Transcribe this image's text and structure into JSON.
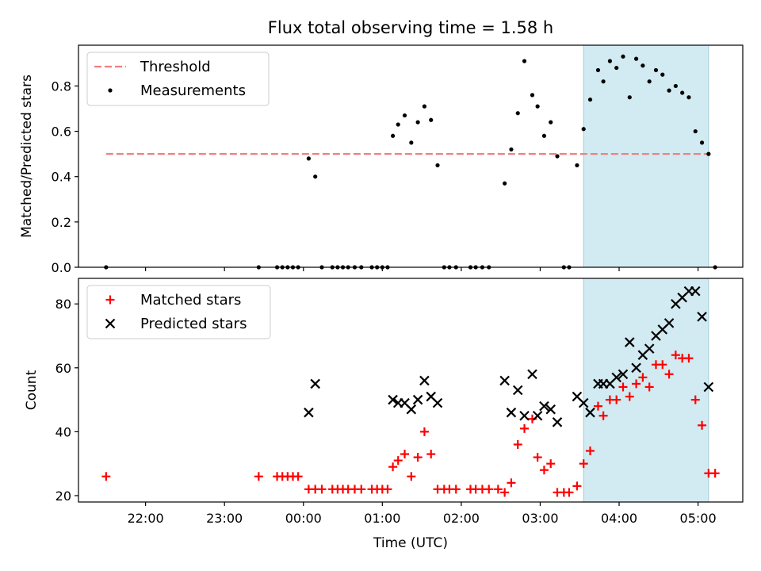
{
  "chart_data": [
    {
      "type": "scatter",
      "title": "Flux total observing time = 1.58 h",
      "ylabel": "Matched/Predicted stars",
      "xlabel": "",
      "x_tick_labels": [
        "22:00",
        "23:00",
        "00:00",
        "01:00",
        "02:00",
        "03:00",
        "04:00",
        "05:00"
      ],
      "ylim": [
        0,
        0.98
      ],
      "y_ticks": [
        0.0,
        0.2,
        0.4,
        0.6,
        0.8
      ],
      "y_tick_labels": [
        "0.0",
        "0.2",
        "0.4",
        "0.6",
        "0.8"
      ],
      "shaded_region": {
        "start": "03:33",
        "end": "05:08",
        "color": "#add8e6"
      },
      "legend": {
        "placement": "upper-left",
        "entries": [
          "Threshold",
          "Measurements"
        ]
      },
      "threshold": {
        "name": "Threshold",
        "value": 0.5,
        "from": "21:30",
        "to": "05:08",
        "color": "#f08080",
        "style": "dashed"
      },
      "series": [
        {
          "name": "Measurements",
          "marker": "dot",
          "color": "#000000",
          "points": [
            [
              "21:30",
              0
            ],
            [
              "23:26",
              0
            ],
            [
              "23:40",
              0
            ],
            [
              "23:44",
              0
            ],
            [
              "23:48",
              0
            ],
            [
              "23:52",
              0
            ],
            [
              "23:56",
              0
            ],
            [
              "00:04",
              0.48
            ],
            [
              "00:09",
              0.4
            ],
            [
              "00:14",
              0
            ],
            [
              "00:22",
              0
            ],
            [
              "00:26",
              0
            ],
            [
              "00:30",
              0
            ],
            [
              "00:34",
              0
            ],
            [
              "00:39",
              0
            ],
            [
              "00:44",
              0
            ],
            [
              "00:52",
              0
            ],
            [
              "00:56",
              0
            ],
            [
              "01:00",
              0
            ],
            [
              "01:04",
              0
            ],
            [
              "01:08",
              0.58
            ],
            [
              "01:12",
              0.63
            ],
            [
              "01:17",
              0.67
            ],
            [
              "01:22",
              0.55
            ],
            [
              "01:27",
              0.64
            ],
            [
              "01:32",
              0.71
            ],
            [
              "01:37",
              0.65
            ],
            [
              "01:42",
              0.45
            ],
            [
              "01:47",
              0
            ],
            [
              "01:51",
              0
            ],
            [
              "01:56",
              0
            ],
            [
              "02:07",
              0
            ],
            [
              "02:11",
              0
            ],
            [
              "02:16",
              0
            ],
            [
              "02:21",
              0
            ],
            [
              "02:33",
              0.37
            ],
            [
              "02:38",
              0.52
            ],
            [
              "02:43",
              0.68
            ],
            [
              "02:48",
              0.91
            ],
            [
              "02:54",
              0.76
            ],
            [
              "02:58",
              0.71
            ],
            [
              "03:03",
              0.58
            ],
            [
              "03:08",
              0.64
            ],
            [
              "03:13",
              0.49
            ],
            [
              "03:18",
              0
            ],
            [
              "03:22",
              0
            ],
            [
              "03:28",
              0.45
            ],
            [
              "03:33",
              0.61
            ],
            [
              "03:38",
              0.74
            ],
            [
              "03:44",
              0.87
            ],
            [
              "03:48",
              0.82
            ],
            [
              "03:53",
              0.91
            ],
            [
              "03:58",
              0.88
            ],
            [
              "04:03",
              0.93
            ],
            [
              "04:08",
              0.75
            ],
            [
              "04:13",
              0.92
            ],
            [
              "04:18",
              0.89
            ],
            [
              "04:23",
              0.82
            ],
            [
              "04:28",
              0.87
            ],
            [
              "04:33",
              0.85
            ],
            [
              "04:38",
              0.78
            ],
            [
              "04:43",
              0.8
            ],
            [
              "04:48",
              0.77
            ],
            [
              "04:53",
              0.75
            ],
            [
              "04:58",
              0.6
            ],
            [
              "05:03",
              0.55
            ],
            [
              "05:08",
              0.5
            ],
            [
              "05:13",
              0
            ]
          ]
        }
      ]
    },
    {
      "type": "scatter",
      "title": "",
      "ylabel": "Count",
      "xlabel": "Time (UTC)",
      "x_tick_labels": [
        "22:00",
        "23:00",
        "00:00",
        "01:00",
        "02:00",
        "03:00",
        "04:00",
        "05:00"
      ],
      "ylim": [
        18,
        88
      ],
      "y_ticks": [
        20,
        40,
        60,
        80
      ],
      "y_tick_labels": [
        "20",
        "40",
        "60",
        "80"
      ],
      "shaded_region": {
        "start": "03:33",
        "end": "05:08",
        "color": "#add8e6"
      },
      "legend": {
        "placement": "upper-left",
        "entries": [
          "Matched stars",
          "Predicted stars"
        ]
      },
      "series": [
        {
          "name": "Matched stars",
          "marker": "plus",
          "color": "#ff0000",
          "points": [
            [
              "21:30",
              26
            ],
            [
              "23:26",
              26
            ],
            [
              "23:40",
              26
            ],
            [
              "23:44",
              26
            ],
            [
              "23:48",
              26
            ],
            [
              "23:52",
              26
            ],
            [
              "23:56",
              26
            ],
            [
              "00:04",
              22
            ],
            [
              "00:09",
              22
            ],
            [
              "00:14",
              22
            ],
            [
              "00:22",
              22
            ],
            [
              "00:26",
              22
            ],
            [
              "00:30",
              22
            ],
            [
              "00:34",
              22
            ],
            [
              "00:39",
              22
            ],
            [
              "00:44",
              22
            ],
            [
              "00:52",
              22
            ],
            [
              "00:56",
              22
            ],
            [
              "01:00",
              22
            ],
            [
              "01:04",
              22
            ],
            [
              "01:08",
              29
            ],
            [
              "01:12",
              31
            ],
            [
              "01:17",
              33
            ],
            [
              "01:22",
              26
            ],
            [
              "01:27",
              32
            ],
            [
              "01:32",
              40
            ],
            [
              "01:37",
              33
            ],
            [
              "01:42",
              22
            ],
            [
              "01:47",
              22
            ],
            [
              "01:51",
              22
            ],
            [
              "01:56",
              22
            ],
            [
              "02:07",
              22
            ],
            [
              "02:11",
              22
            ],
            [
              "02:16",
              22
            ],
            [
              "02:21",
              22
            ],
            [
              "02:28",
              22
            ],
            [
              "02:33",
              21
            ],
            [
              "02:38",
              24
            ],
            [
              "02:43",
              36
            ],
            [
              "02:48",
              41
            ],
            [
              "02:54",
              44
            ],
            [
              "02:58",
              32
            ],
            [
              "03:03",
              28
            ],
            [
              "03:08",
              30
            ],
            [
              "03:13",
              21
            ],
            [
              "03:18",
              21
            ],
            [
              "03:22",
              21
            ],
            [
              "03:28",
              23
            ],
            [
              "03:33",
              30
            ],
            [
              "03:38",
              34
            ],
            [
              "03:44",
              48
            ],
            [
              "03:48",
              45
            ],
            [
              "03:53",
              50
            ],
            [
              "03:58",
              50
            ],
            [
              "04:03",
              54
            ],
            [
              "04:08",
              51
            ],
            [
              "04:13",
              55
            ],
            [
              "04:18",
              57
            ],
            [
              "04:23",
              54
            ],
            [
              "04:28",
              61
            ],
            [
              "04:33",
              61
            ],
            [
              "04:38",
              58
            ],
            [
              "04:43",
              64
            ],
            [
              "04:48",
              63
            ],
            [
              "04:53",
              63
            ],
            [
              "04:58",
              50
            ],
            [
              "05:03",
              42
            ],
            [
              "05:08",
              27
            ],
            [
              "05:13",
              27
            ]
          ]
        },
        {
          "name": "Predicted stars",
          "marker": "x",
          "color": "#000000",
          "points": [
            [
              "00:04",
              46
            ],
            [
              "00:09",
              55
            ],
            [
              "01:08",
              50
            ],
            [
              "01:12",
              49
            ],
            [
              "01:17",
              49
            ],
            [
              "01:22",
              47
            ],
            [
              "01:27",
              50
            ],
            [
              "01:32",
              56
            ],
            [
              "01:37",
              51
            ],
            [
              "01:42",
              49
            ],
            [
              "02:33",
              56
            ],
            [
              "02:38",
              46
            ],
            [
              "02:43",
              53
            ],
            [
              "02:48",
              45
            ],
            [
              "02:54",
              58
            ],
            [
              "02:58",
              45
            ],
            [
              "03:03",
              48
            ],
            [
              "03:08",
              47
            ],
            [
              "03:13",
              43
            ],
            [
              "03:28",
              51
            ],
            [
              "03:33",
              49
            ],
            [
              "03:38",
              46
            ],
            [
              "03:44",
              55
            ],
            [
              "03:48",
              55
            ],
            [
              "03:53",
              55
            ],
            [
              "03:58",
              57
            ],
            [
              "04:03",
              58
            ],
            [
              "04:08",
              68
            ],
            [
              "04:13",
              60
            ],
            [
              "04:18",
              64
            ],
            [
              "04:23",
              66
            ],
            [
              "04:28",
              70
            ],
            [
              "04:33",
              72
            ],
            [
              "04:38",
              74
            ],
            [
              "04:43",
              80
            ],
            [
              "04:48",
              82
            ],
            [
              "04:53",
              84
            ],
            [
              "04:58",
              84
            ],
            [
              "05:03",
              76
            ],
            [
              "05:08",
              54
            ]
          ]
        }
      ]
    }
  ]
}
